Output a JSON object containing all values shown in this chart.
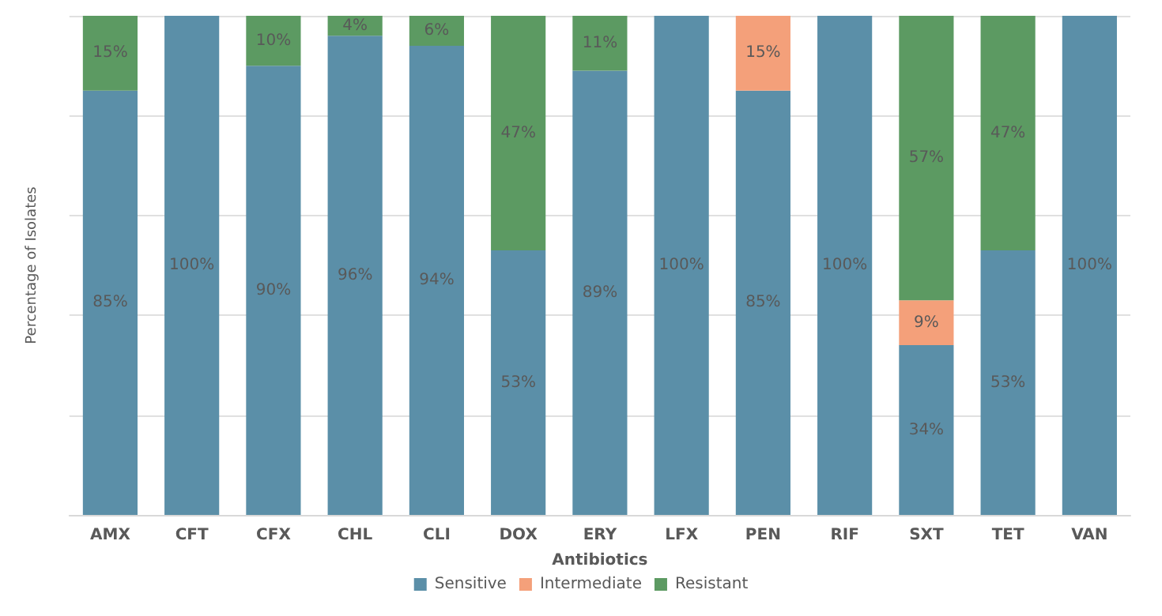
{
  "chart_data": {
    "type": "bar",
    "stacked": true,
    "xlabel": "Antibiotics",
    "ylabel": "Percentage of Isolates",
    "categories": [
      "AMX",
      "CFT",
      "CFX",
      "CHL",
      "CLI",
      "DOX",
      "ERY",
      "LFX",
      "PEN",
      "RIF",
      "SXT",
      "TET",
      "VAN"
    ],
    "series": [
      {
        "name": "Sensitive",
        "color": "#5b8fa8",
        "values": [
          85,
          100,
          90,
          96,
          94,
          53,
          89,
          100,
          85,
          100,
          34,
          53,
          100
        ],
        "value_labels": [
          "85%",
          "100%",
          "90%",
          "96%",
          "94%",
          "53%",
          "89%",
          "100%",
          "85%",
          "100%",
          "34%",
          "53%",
          "100%"
        ]
      },
      {
        "name": "Intermediate",
        "color": "#f4a07a",
        "values": [
          null,
          null,
          null,
          null,
          null,
          null,
          null,
          null,
          15,
          null,
          9,
          null,
          null
        ],
        "value_labels": [
          null,
          null,
          null,
          null,
          null,
          null,
          null,
          null,
          "15%",
          null,
          "9%",
          null,
          null
        ]
      },
      {
        "name": "Resistant",
        "color": "#5c9a62",
        "values": [
          15,
          null,
          10,
          4,
          6,
          47,
          11,
          null,
          null,
          null,
          57,
          47,
          null
        ],
        "value_labels": [
          "15%",
          null,
          "10%",
          "4%",
          "6%",
          "47%",
          "11%",
          null,
          null,
          null,
          "57%",
          "47%",
          null
        ]
      }
    ],
    "ylim": [
      0,
      100
    ],
    "yticks": [
      {
        "value": 0,
        "label": null
      },
      {
        "value": 20,
        "label": null
      },
      {
        "value": 40,
        "label": null
      },
      {
        "value": 60,
        "label": null
      },
      {
        "value": 80,
        "label": null
      },
      {
        "value": 100,
        "label": null
      }
    ],
    "grid": "y",
    "legend": "bottom"
  }
}
